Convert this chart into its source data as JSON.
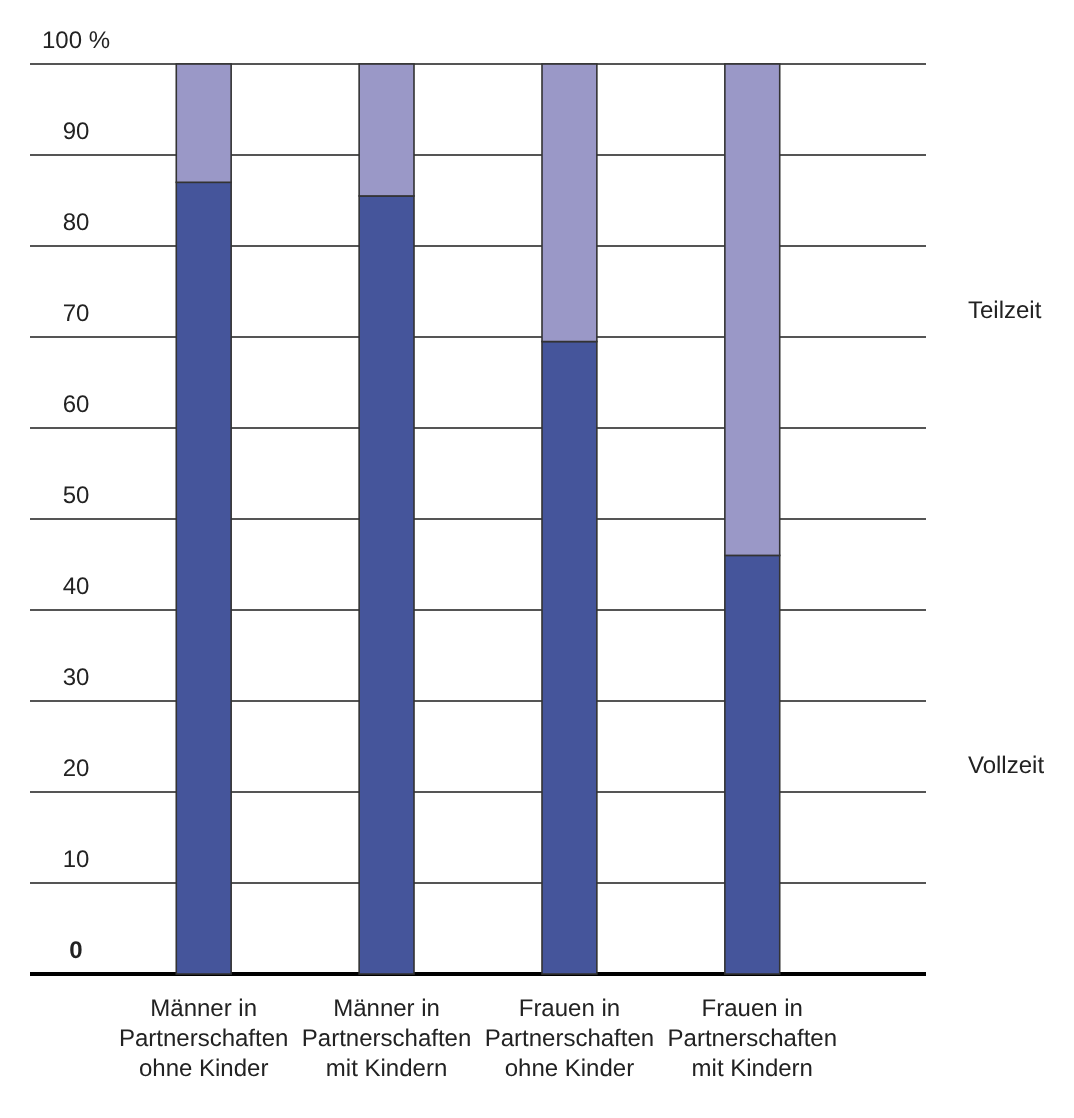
{
  "chart_data": {
    "type": "bar",
    "stacked": true,
    "categories": [
      "Männer in Partnerschaften ohne Kinder",
      "Männer in Partnerschaften mit Kindern",
      "Frauen in Partnerschaften ohne Kinder",
      "Frauen in Partnerschaften mit Kindern"
    ],
    "series": [
      {
        "name": "Vollzeit",
        "color": "#45559b",
        "values": [
          87,
          85.5,
          69.5,
          46
        ]
      },
      {
        "name": "Teilzeit",
        "color": "#9a98c7",
        "values": [
          13,
          14.5,
          30.5,
          54
        ]
      }
    ],
    "ylim": [
      0,
      100
    ],
    "yticks": [
      {
        "value": 0,
        "label": "0"
      },
      10,
      20,
      30,
      40,
      50,
      60,
      70,
      80,
      90,
      {
        "value": 100,
        "label": "100 %"
      }
    ],
    "grid": "y"
  }
}
